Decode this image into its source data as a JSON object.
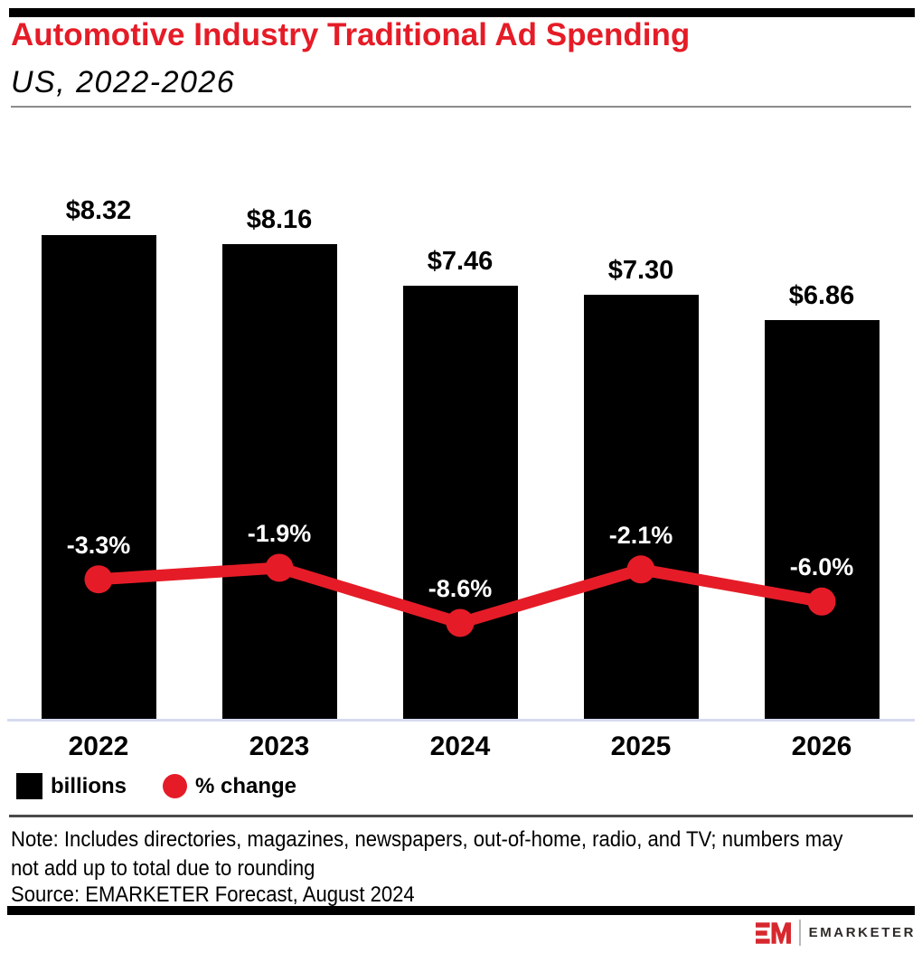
{
  "title": "Automotive Industry Traditional Ad Spending",
  "subtitle": "US, 2022-2026",
  "colors": {
    "accent_red": "#e51c27",
    "bar_black": "#000000",
    "axis_line": "#d6dbf0",
    "logo_red": "#d7282f"
  },
  "chart_data": {
    "type": "bar",
    "categories": [
      "2022",
      "2023",
      "2024",
      "2025",
      "2026"
    ],
    "series": [
      {
        "name": "billions",
        "type": "bar",
        "values": [
          8.32,
          8.16,
          7.46,
          7.3,
          6.86
        ],
        "labels": [
          "$8.32",
          "$8.16",
          "$7.46",
          "$7.30",
          "$6.86"
        ],
        "color": "#000000"
      },
      {
        "name": "% change",
        "type": "line",
        "values": [
          -3.3,
          -1.9,
          -8.6,
          -2.1,
          -6.0
        ],
        "labels": [
          "-3.3%",
          "-1.9%",
          "-8.6%",
          "-2.1%",
          "-6.0%"
        ],
        "color": "#e51c27"
      }
    ],
    "legend": [
      {
        "label": "billions",
        "swatch": "square",
        "color": "#000000"
      },
      {
        "label": "% change",
        "swatch": "circle",
        "color": "#e51c27"
      }
    ],
    "title": "Automotive Industry Traditional Ad Spending",
    "xlabel": "",
    "ylabel": "",
    "grid": false,
    "legend_position": "bottom-left"
  },
  "note_line": "Note: Includes directories, magazines, newspapers, out-of-home, radio, and TV; numbers may not add up to total due to rounding",
  "source_line": "Source: EMARKETER Forecast, August 2024",
  "footer": {
    "brand": "EMARKETER",
    "logo": "EM"
  }
}
